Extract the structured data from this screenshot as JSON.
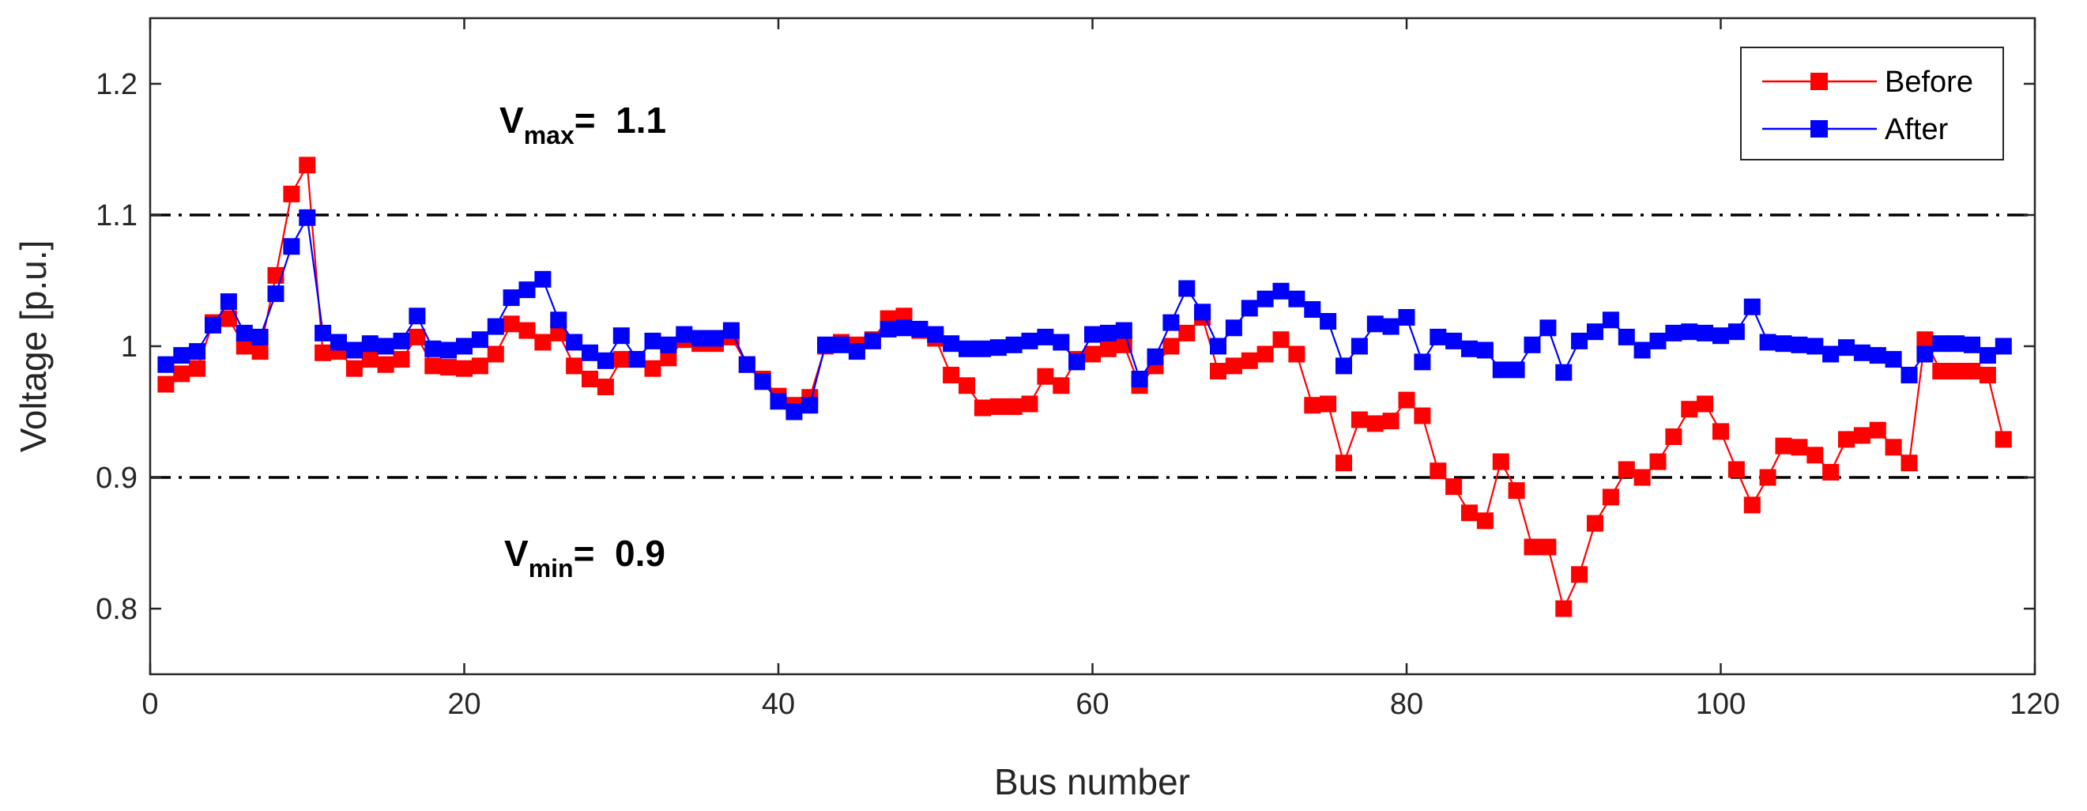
{
  "chart_data": {
    "type": "line",
    "xlabel": "Bus number",
    "ylabel": "Voltage [p.u.]",
    "xlim": [
      0,
      120
    ],
    "ylim": [
      0.75,
      1.25
    ],
    "xticks": [
      0,
      20,
      40,
      60,
      80,
      100,
      120
    ],
    "yticks": [
      0.8,
      0.9,
      1,
      1.1,
      1.2
    ],
    "xtick_labels": [
      "0",
      "20",
      "40",
      "60",
      "80",
      "100",
      "120"
    ],
    "ytick_labels": [
      "0.8",
      "0.9",
      "1",
      "1.1",
      "1.2"
    ],
    "grid": false,
    "legend_position": "top-right",
    "reference_lines": [
      {
        "value": 1.1,
        "style": "dash-dot",
        "color": "#000000"
      },
      {
        "value": 0.9,
        "style": "dash-dot",
        "color": "#000000"
      }
    ],
    "annotations": {
      "vmax": {
        "symbol": "V",
        "subscript": "max",
        "text": "=  1.1"
      },
      "vmin": {
        "symbol": "V",
        "subscript": "min",
        "text": "=  0.9"
      }
    },
    "series": [
      {
        "name": "Before",
        "color": "#ff0000",
        "marker": "square",
        "points": [
          [
            1,
            0.971
          ],
          [
            2,
            0.979
          ],
          [
            3,
            0.983
          ],
          [
            4,
            1.018
          ],
          [
            5,
            1.021
          ],
          [
            6,
            1.0
          ],
          [
            7,
            0.996
          ],
          [
            8,
            1.054
          ],
          [
            9,
            1.116
          ],
          [
            10,
            1.138
          ],
          [
            11,
            0.995
          ],
          [
            12,
            0.996
          ],
          [
            13,
            0.983
          ],
          [
            14,
            0.99
          ],
          [
            15,
            0.986
          ],
          [
            16,
            0.99
          ],
          [
            17,
            1.007
          ],
          [
            18,
            0.985
          ],
          [
            19,
            0.984
          ],
          [
            20,
            0.983
          ],
          [
            21,
            0.985
          ],
          [
            22,
            0.994
          ],
          [
            23,
            1.017
          ],
          [
            24,
            1.012
          ],
          [
            25,
            1.003
          ],
          [
            26,
            1.01
          ],
          [
            27,
            0.985
          ],
          [
            28,
            0.975
          ],
          [
            29,
            0.969
          ],
          [
            30,
            0.99
          ],
          [
            31,
            0.99
          ],
          [
            32,
            0.983
          ],
          [
            33,
            0.991
          ],
          [
            34,
            1.005
          ],
          [
            35,
            1.002
          ],
          [
            36,
            1.002
          ],
          [
            37,
            1.007
          ],
          [
            38,
            0.986
          ],
          [
            39,
            0.975
          ],
          [
            40,
            0.962
          ],
          [
            41,
            0.955
          ],
          [
            42,
            0.961
          ],
          [
            43,
            1.0
          ],
          [
            44,
            1.003
          ],
          [
            45,
            1.001
          ],
          [
            46,
            1.005
          ],
          [
            47,
            1.021
          ],
          [
            48,
            1.023
          ],
          [
            49,
            1.012
          ],
          [
            50,
            1.006
          ],
          [
            51,
            0.978
          ],
          [
            52,
            0.97
          ],
          [
            53,
            0.953
          ],
          [
            54,
            0.954
          ],
          [
            55,
            0.954
          ],
          [
            56,
            0.956
          ],
          [
            57,
            0.977
          ],
          [
            58,
            0.97
          ],
          [
            59,
            0.99
          ],
          [
            60,
            0.994
          ],
          [
            61,
            0.998
          ],
          [
            62,
            1.001
          ],
          [
            63,
            0.97
          ],
          [
            64,
            0.985
          ],
          [
            65,
            1.0
          ],
          [
            66,
            1.01
          ],
          [
            67,
            1.022
          ],
          [
            68,
            0.981
          ],
          [
            69,
            0.985
          ],
          [
            70,
            0.989
          ],
          [
            71,
            0.994
          ],
          [
            72,
            1.005
          ],
          [
            73,
            0.994
          ],
          [
            74,
            0.955
          ],
          [
            75,
            0.956
          ],
          [
            76,
            0.911
          ],
          [
            77,
            0.944
          ],
          [
            78,
            0.941
          ],
          [
            79,
            0.943
          ],
          [
            80,
            0.959
          ],
          [
            81,
            0.947
          ],
          [
            82,
            0.905
          ],
          [
            83,
            0.893
          ],
          [
            84,
            0.873
          ],
          [
            85,
            0.867
          ],
          [
            86,
            0.912
          ],
          [
            87,
            0.89
          ],
          [
            88,
            0.847
          ],
          [
            89,
            0.847
          ],
          [
            90,
            0.8
          ],
          [
            91,
            0.826
          ],
          [
            92,
            0.865
          ],
          [
            93,
            0.885
          ],
          [
            94,
            0.906
          ],
          [
            95,
            0.9
          ],
          [
            96,
            0.912
          ],
          [
            97,
            0.931
          ],
          [
            98,
            0.952
          ],
          [
            99,
            0.956
          ],
          [
            100,
            0.935
          ],
          [
            101,
            0.906
          ],
          [
            102,
            0.879
          ],
          [
            103,
            0.9
          ],
          [
            104,
            0.924
          ],
          [
            105,
            0.923
          ],
          [
            106,
            0.917
          ],
          [
            107,
            0.904
          ],
          [
            108,
            0.929
          ],
          [
            109,
            0.932
          ],
          [
            110,
            0.936
          ],
          [
            111,
            0.923
          ],
          [
            112,
            0.911
          ],
          [
            113,
            1.005
          ],
          [
            114,
            0.981
          ],
          [
            115,
            0.981
          ],
          [
            116,
            0.981
          ],
          [
            117,
            0.978
          ],
          [
            118,
            0.929
          ]
        ]
      },
      {
        "name": "After",
        "color": "#0000ff",
        "marker": "square",
        "points": [
          [
            1,
            0.986
          ],
          [
            2,
            0.993
          ],
          [
            3,
            0.996
          ],
          [
            4,
            1.016
          ],
          [
            5,
            1.034
          ],
          [
            6,
            1.01
          ],
          [
            7,
            1.007
          ],
          [
            8,
            1.04
          ],
          [
            9,
            1.076
          ],
          [
            10,
            1.098
          ],
          [
            11,
            1.01
          ],
          [
            12,
            1.003
          ],
          [
            13,
            0.997
          ],
          [
            14,
            1.002
          ],
          [
            15,
            1.0
          ],
          [
            16,
            1.004
          ],
          [
            17,
            1.023
          ],
          [
            18,
            0.998
          ],
          [
            19,
            0.997
          ],
          [
            20,
            1.0
          ],
          [
            21,
            1.005
          ],
          [
            22,
            1.015
          ],
          [
            23,
            1.037
          ],
          [
            24,
            1.043
          ],
          [
            25,
            1.051
          ],
          [
            26,
            1.02
          ],
          [
            27,
            1.003
          ],
          [
            28,
            0.995
          ],
          [
            29,
            0.989
          ],
          [
            30,
            1.008
          ],
          [
            31,
            0.99
          ],
          [
            32,
            1.004
          ],
          [
            33,
            1.001
          ],
          [
            34,
            1.009
          ],
          [
            35,
            1.006
          ],
          [
            36,
            1.006
          ],
          [
            37,
            1.012
          ],
          [
            38,
            0.986
          ],
          [
            39,
            0.973
          ],
          [
            40,
            0.958
          ],
          [
            41,
            0.95
          ],
          [
            42,
            0.955
          ],
          [
            43,
            1.001
          ],
          [
            44,
            1.001
          ],
          [
            45,
            0.996
          ],
          [
            46,
            1.004
          ],
          [
            47,
            1.013
          ],
          [
            48,
            1.014
          ],
          [
            49,
            1.013
          ],
          [
            50,
            1.009
          ],
          [
            51,
            1.002
          ],
          [
            52,
            0.998
          ],
          [
            53,
            0.998
          ],
          [
            54,
            0.999
          ],
          [
            55,
            1.001
          ],
          [
            56,
            1.004
          ],
          [
            57,
            1.007
          ],
          [
            58,
            1.003
          ],
          [
            59,
            0.988
          ],
          [
            60,
            1.009
          ],
          [
            61,
            1.01
          ],
          [
            62,
            1.012
          ],
          [
            63,
            0.975
          ],
          [
            64,
            0.992
          ],
          [
            65,
            1.018
          ],
          [
            66,
            1.044
          ],
          [
            67,
            1.026
          ],
          [
            68,
            1.0
          ],
          [
            69,
            1.014
          ],
          [
            70,
            1.029
          ],
          [
            71,
            1.036
          ],
          [
            72,
            1.042
          ],
          [
            73,
            1.036
          ],
          [
            74,
            1.028
          ],
          [
            75,
            1.019
          ],
          [
            76,
            0.985
          ],
          [
            77,
            1.0
          ],
          [
            78,
            1.017
          ],
          [
            79,
            1.015
          ],
          [
            80,
            1.022
          ],
          [
            81,
            0.988
          ],
          [
            82,
            1.007
          ],
          [
            83,
            1.004
          ],
          [
            84,
            0.998
          ],
          [
            85,
            0.997
          ],
          [
            86,
            0.982
          ],
          [
            87,
            0.982
          ],
          [
            88,
            1.001
          ],
          [
            89,
            1.014
          ],
          [
            90,
            0.98
          ],
          [
            91,
            1.004
          ],
          [
            92,
            1.011
          ],
          [
            93,
            1.02
          ],
          [
            94,
            1.007
          ],
          [
            95,
            0.997
          ],
          [
            96,
            1.004
          ],
          [
            97,
            1.01
          ],
          [
            98,
            1.011
          ],
          [
            99,
            1.01
          ],
          [
            100,
            1.008
          ],
          [
            101,
            1.011
          ],
          [
            102,
            1.03
          ],
          [
            103,
            1.003
          ],
          [
            104,
            1.002
          ],
          [
            105,
            1.001
          ],
          [
            106,
            1.0
          ],
          [
            107,
            0.994
          ],
          [
            108,
            0.999
          ],
          [
            109,
            0.995
          ],
          [
            110,
            0.993
          ],
          [
            111,
            0.99
          ],
          [
            112,
            0.978
          ],
          [
            113,
            0.994
          ],
          [
            114,
            1.002
          ],
          [
            115,
            1.002
          ],
          [
            116,
            1.001
          ],
          [
            117,
            0.993
          ],
          [
            118,
            1.0
          ]
        ]
      }
    ]
  }
}
